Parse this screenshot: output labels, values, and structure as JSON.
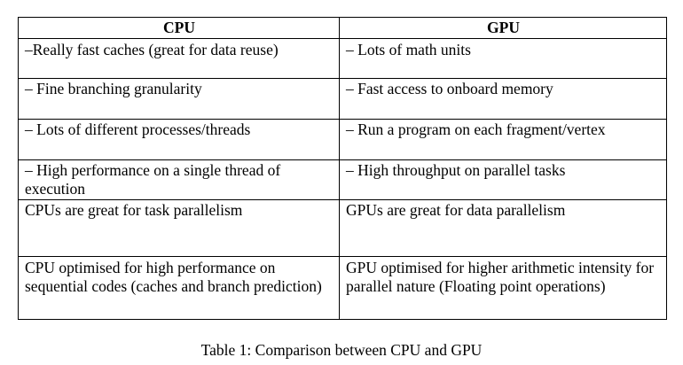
{
  "table": {
    "headers": [
      "CPU",
      "GPU"
    ],
    "rows": [
      [
        "–Really fast caches (great for data reuse)",
        "– Lots of math units"
      ],
      [
        "– Fine branching granularity",
        "– Fast access to onboard memory"
      ],
      [
        "– Lots of different processes/threads",
        "– Run a program on each fragment/vertex"
      ],
      [
        "– High performance on a single thread of execution",
        "– High throughput on parallel tasks"
      ],
      [
        "CPUs are great for task parallelism",
        "GPUs are great for data parallelism"
      ],
      [
        "CPU optimised for high performance on sequential codes (caches and branch prediction)",
        "GPU optimised for higher arithmetic intensity for parallel nature (Floating point operations)"
      ]
    ]
  },
  "caption": "Table 1: Comparison between CPU and GPU"
}
